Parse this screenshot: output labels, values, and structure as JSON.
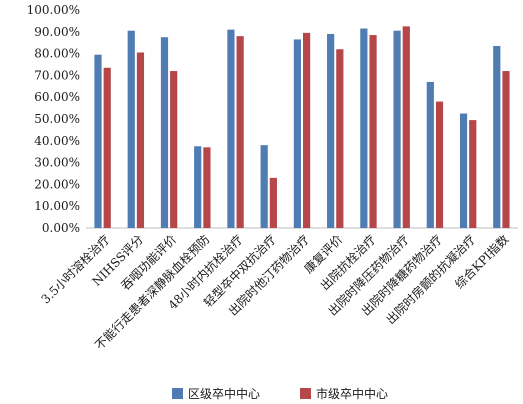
{
  "chart_data": {
    "type": "bar",
    "categories": [
      "3.5小时溶栓治疗",
      "NIHSS评分",
      "吞咽功能评价",
      "不能行走患者深静脉血栓预防",
      "48小时内抗栓治疗",
      "轻型卒中双抗治疗",
      "出院时他汀药物治疗",
      "康复评价",
      "出院抗栓治疗",
      "出院时降压药物治疗",
      "出院时降糖药物治疗",
      "出院时房颤的抗凝治疗",
      "综合KPI指数"
    ],
    "series": [
      {
        "name": "区级卒中中心",
        "color": "#4f7db3",
        "values": [
          79.5,
          90.5,
          87.5,
          37.5,
          91,
          38,
          86.5,
          89,
          91.5,
          90.5,
          67,
          52.5,
          83.5
        ]
      },
      {
        "name": "市级卒中中心",
        "color": "#b5474b",
        "values": [
          73.5,
          80.5,
          72,
          37,
          88,
          23,
          89.5,
          82,
          88.5,
          92.5,
          58,
          49.5,
          72
        ]
      }
    ],
    "yticks": [
      "0.00%",
      "10.00%",
      "20.00%",
      "30.00%",
      "40.00%",
      "50.00%",
      "60.00%",
      "70.00%",
      "80.00%",
      "90.00%",
      "100.00%"
    ],
    "ylim": [
      0,
      100
    ],
    "grid": false,
    "legend_position": "bottom"
  }
}
